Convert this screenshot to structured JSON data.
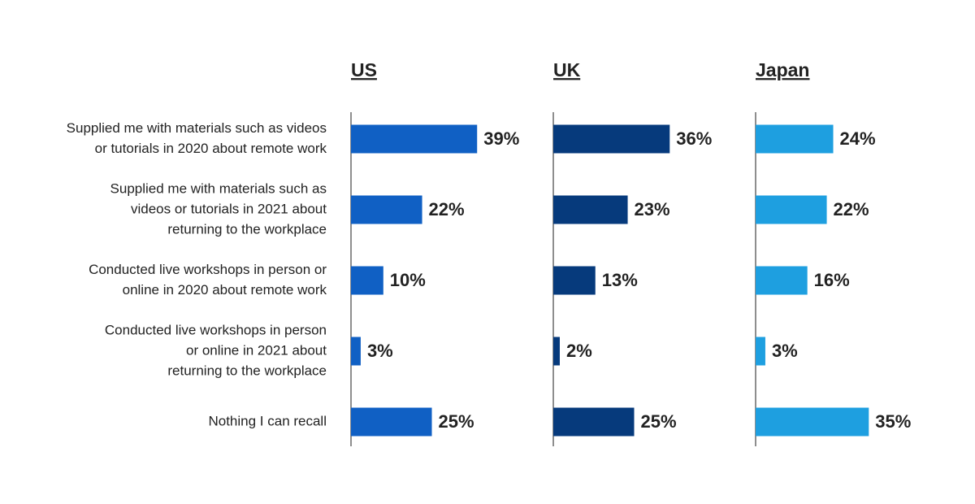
{
  "chart_data": {
    "type": "bar",
    "categories": [
      [
        "Supplied me with materials such as videos",
        "or tutorials in 2020 about remote work"
      ],
      [
        "Supplied me with materials such as",
        "videos or tutorials in 2021 about",
        "returning to the workplace"
      ],
      [
        "Conducted live workshops in person or",
        "online in 2020 about remote work"
      ],
      [
        "Conducted live workshops in person",
        "or online in 2021 about",
        "returning to the workplace"
      ],
      [
        "Nothing I can recall"
      ]
    ],
    "series": [
      {
        "name": "US",
        "color": "#1060c4",
        "values": [
          39,
          22,
          10,
          3,
          25
        ],
        "value_labels": [
          "39%",
          "22%",
          "10%",
          "3%",
          "25%"
        ]
      },
      {
        "name": "UK",
        "color": "#063a7c",
        "values": [
          36,
          23,
          13,
          2,
          25
        ],
        "value_labels": [
          "36%",
          "23%",
          "13%",
          "2%",
          "25%"
        ]
      },
      {
        "name": "Japan",
        "color": "#1e9fe0",
        "values": [
          24,
          22,
          16,
          3,
          35
        ],
        "value_labels": [
          "24%",
          "22%",
          "16%",
          "3%",
          "35%"
        ]
      }
    ]
  }
}
